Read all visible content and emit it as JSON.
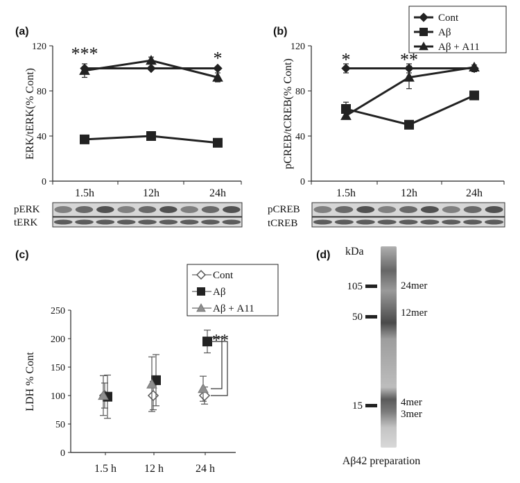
{
  "chart_data": [
    {
      "panel": "(a)",
      "type": "line",
      "ylabel": "ERK/tERK(% Cont)",
      "categories": [
        "1.5h",
        "12h",
        "24h"
      ],
      "yticks": [
        0,
        40,
        80,
        120
      ],
      "ylim": [
        0,
        120
      ],
      "series": [
        {
          "name": "Cont",
          "marker": "diamond",
          "values": [
            100,
            100,
            100
          ],
          "err": [
            0,
            0,
            0
          ]
        },
        {
          "name": "Aβ",
          "marker": "square",
          "values": [
            37,
            40,
            34
          ],
          "err": [
            0,
            0,
            0
          ]
        },
        {
          "name": "Aβ + A11",
          "marker": "triangle",
          "values": [
            98,
            107,
            92
          ],
          "err": [
            6,
            3,
            4
          ]
        }
      ],
      "annotations": [
        {
          "text": "***",
          "category": "1.5h",
          "y": 115
        },
        {
          "text": "*",
          "category": "24h",
          "y": 111
        }
      ],
      "blot": {
        "labels": [
          "pERK",
          "tERK"
        ]
      }
    },
    {
      "panel": "(b)",
      "type": "line",
      "ylabel": "pCREB/tCREB(% Cont)",
      "categories": [
        "1.5h",
        "12h",
        "24h"
      ],
      "yticks": [
        0,
        40,
        80,
        120
      ],
      "ylim": [
        0,
        120
      ],
      "series": [
        {
          "name": "Cont",
          "marker": "diamond",
          "values": [
            100,
            100,
            100
          ],
          "err": [
            4,
            4,
            3
          ]
        },
        {
          "name": "Aβ",
          "marker": "square",
          "values": [
            64,
            50,
            76
          ],
          "err": [
            6,
            0,
            0
          ]
        },
        {
          "name": "Aβ + A11",
          "marker": "triangle",
          "values": [
            58,
            92,
            101
          ],
          "err": [
            0,
            10,
            0
          ]
        }
      ],
      "annotations": [
        {
          "text": "*",
          "category": "1.5h",
          "y": 110
        },
        {
          "text": "**",
          "category": "12h",
          "y": 110
        }
      ],
      "legend": {
        "position": "top-right",
        "entries": [
          "Cont",
          "Aβ",
          "Aβ + A11"
        ]
      },
      "blot": {
        "labels": [
          "pCREB",
          "tCREB"
        ]
      }
    },
    {
      "panel": "(c)",
      "type": "scatter",
      "ylabel": "LDH % Cont",
      "categories": [
        "1.5 h",
        "12 h",
        "24 h"
      ],
      "yticks": [
        0,
        50,
        100,
        150,
        200,
        250
      ],
      "ylim": [
        0,
        250
      ],
      "series": [
        {
          "name": "Cont",
          "marker": "open-diamond",
          "values": [
            100,
            100,
            100
          ],
          "err": [
            22,
            25,
            15
          ]
        },
        {
          "name": "Aβ",
          "marker": "filled-square",
          "values": [
            98,
            127,
            195
          ],
          "err": [
            38,
            45,
            20
          ]
        },
        {
          "name": "Aβ + A11",
          "marker": "grey-triangle",
          "values": [
            100,
            120,
            112
          ],
          "err": [
            35,
            48,
            22
          ]
        }
      ],
      "annotations": [
        {
          "text": "**",
          "category": "24 h",
          "y": 205
        }
      ],
      "legend": {
        "position": "top",
        "entries": [
          "Cont",
          "Aβ",
          "Aβ + A11"
        ]
      }
    },
    {
      "panel": "(d)",
      "type": "gel",
      "unit_label": "kDa",
      "markers": [
        "105",
        "50",
        "15"
      ],
      "bands": [
        "24mer",
        "12mer",
        "4mer",
        "3mer"
      ],
      "caption": "Aβ42 preparation"
    }
  ]
}
